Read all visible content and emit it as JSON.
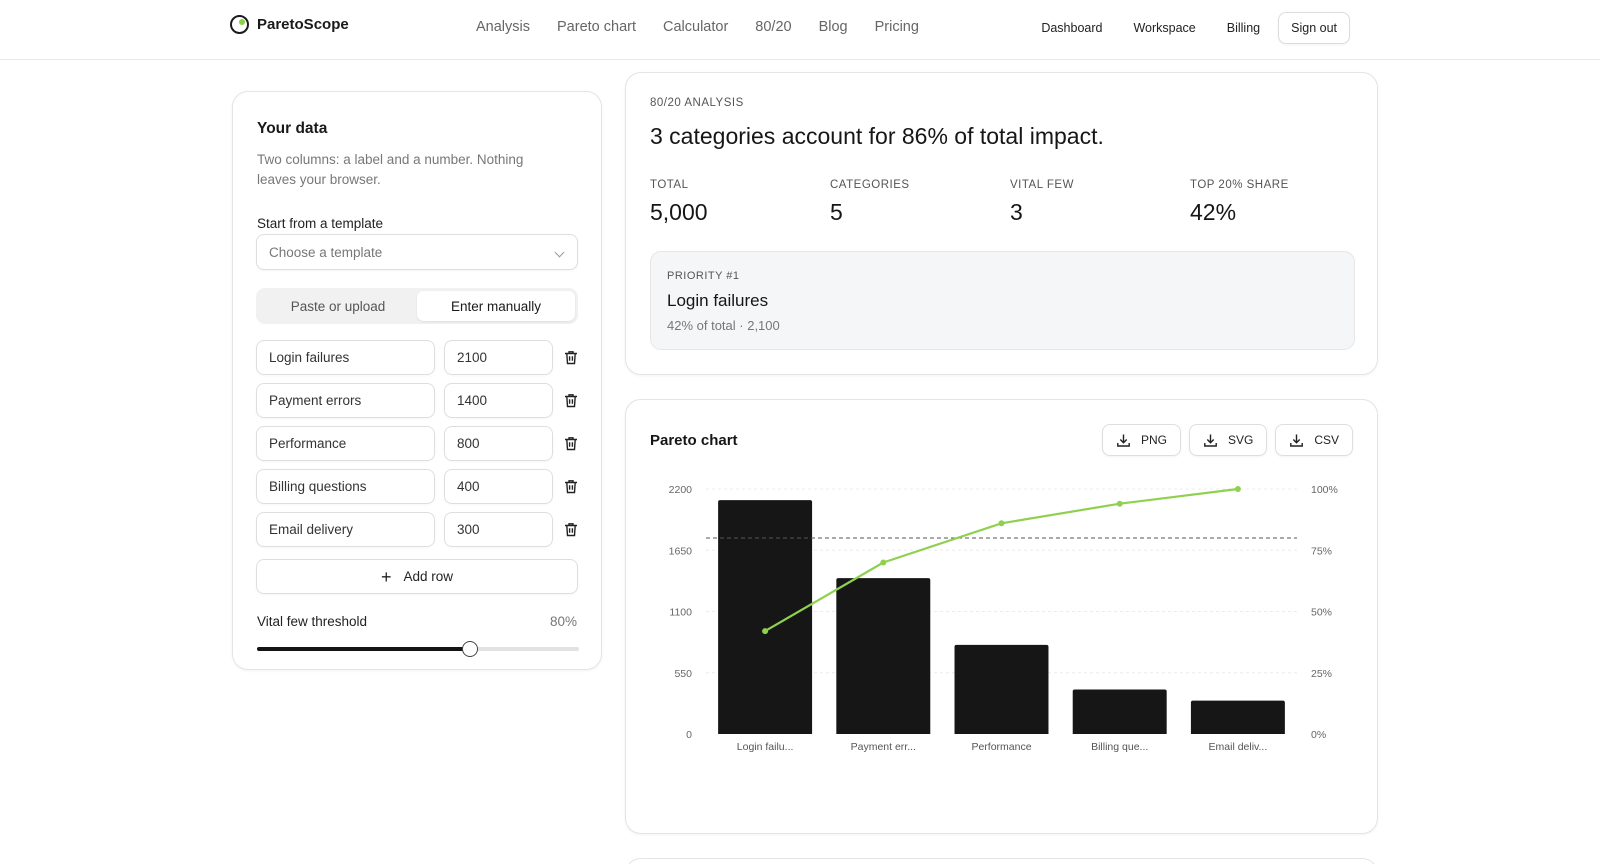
{
  "brand": {
    "name": "ParetoScope"
  },
  "nav": {
    "main": [
      "Analysis",
      "Pareto chart",
      "Calculator",
      "80/20",
      "Blog",
      "Pricing"
    ],
    "right": [
      "Dashboard",
      "Workspace",
      "Billing"
    ],
    "sign_out": "Sign out"
  },
  "data_panel": {
    "title": "Your data",
    "description": "Two columns: a label and a number. Nothing leaves your browser.",
    "template_label": "Start from a template",
    "template_placeholder": "Choose a template",
    "modes": [
      {
        "label": "Paste or upload",
        "active": false
      },
      {
        "label": "Enter manually",
        "active": true
      }
    ],
    "rows": [
      {
        "label": "Login failures",
        "value": "2100"
      },
      {
        "label": "Payment errors",
        "value": "1400"
      },
      {
        "label": "Performance",
        "value": "800"
      },
      {
        "label": "Billing questions",
        "value": "400"
      },
      {
        "label": "Email delivery",
        "value": "300"
      }
    ],
    "add_row": "Add row",
    "threshold_label": "Vital few threshold",
    "threshold_value": "80%",
    "threshold_fraction": 0.66
  },
  "analysis": {
    "eyebrow": "80/20 ANALYSIS",
    "headline": "3 categories account for 86% of total impact.",
    "stats": [
      {
        "label": "TOTAL",
        "value": "5,000"
      },
      {
        "label": "CATEGORIES",
        "value": "5"
      },
      {
        "label": "VITAL FEW",
        "value": "3"
      },
      {
        "label": "TOP 20% SHARE",
        "value": "42%"
      }
    ],
    "priority": {
      "eyebrow": "PRIORITY #1",
      "title": "Login failures",
      "subtitle": "42% of total · 2,100"
    }
  },
  "chart_panel": {
    "title": "Pareto chart",
    "exports": [
      "PNG",
      "SVG",
      "CSV"
    ]
  },
  "chart_data": {
    "type": "bar",
    "categories": [
      "Login failu...",
      "Payment err...",
      "Performance",
      "Billing que...",
      "Email deliv..."
    ],
    "series": [
      {
        "values": [
          2100,
          1400,
          800,
          400,
          300
        ]
      },
      {
        "values": [
          42,
          70,
          86,
          94,
          100
        ]
      }
    ],
    "ylim": [
      0,
      2200
    ],
    "y_ticks": [
      "0",
      "550",
      "1100",
      "1650",
      "2200"
    ],
    "y2lim": [
      0,
      100
    ],
    "y2_ticks": [
      "0%",
      "25%",
      "50%",
      "75%",
      "100%"
    ],
    "threshold_percent": 80,
    "colors": {
      "bar": "#161616",
      "line": "#8fd14f",
      "threshold": "#555555"
    },
    "grid": true
  }
}
